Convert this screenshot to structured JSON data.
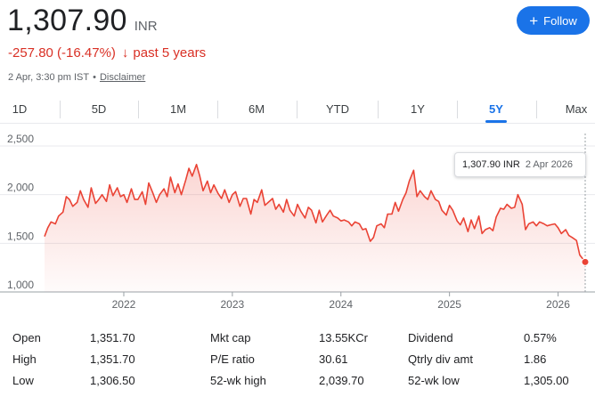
{
  "header": {
    "price": "1,307.90",
    "currency": "INR",
    "change": "-257.80 (-16.47%)",
    "change_arrow": "↓",
    "period": "past 5 years",
    "timestamp": "2 Apr, 3:30 pm IST",
    "separator": "•",
    "disclaimer": "Disclaimer",
    "follow_label": "Follow",
    "follow_icon": "+"
  },
  "colors": {
    "accent": "#1a73e8",
    "negative": "#d93025"
  },
  "tabs": [
    {
      "label": "1D",
      "active": false
    },
    {
      "label": "5D",
      "active": false
    },
    {
      "label": "1M",
      "active": false
    },
    {
      "label": "6M",
      "active": false
    },
    {
      "label": "YTD",
      "active": false
    },
    {
      "label": "1Y",
      "active": false
    },
    {
      "label": "5Y",
      "active": true
    },
    {
      "label": "Max",
      "active": false
    }
  ],
  "tooltip": {
    "value": "1,307.90 INR",
    "date": "2 Apr 2026"
  },
  "chart_data": {
    "type": "area",
    "title": "",
    "xlabel": "",
    "ylabel": "",
    "ylim": [
      1000,
      2500
    ],
    "y_ticks": [
      "2,500",
      "2,000",
      "1,500",
      "1,000"
    ],
    "y_tick_values": [
      2500,
      2000,
      1500,
      1000
    ],
    "xlim": [
      2021.27,
      2026.25
    ],
    "x_ticks": [
      "2022",
      "2023",
      "2024",
      "2025",
      "2026"
    ],
    "x_tick_values": [
      2022,
      2023,
      2024,
      2025,
      2026
    ],
    "grid": true,
    "series": [
      {
        "x": [
          2021.27,
          2021.3,
          2021.33,
          2021.37,
          2021.4,
          2021.44,
          2021.47,
          2021.5,
          2021.53,
          2021.57,
          2021.6,
          2021.63,
          2021.67,
          2021.7,
          2021.74,
          2021.77,
          2021.8,
          2021.84,
          2021.87,
          2021.9,
          2021.94,
          2021.97,
          2022.0,
          2022.03,
          2022.07,
          2022.1,
          2022.13,
          2022.17,
          2022.2,
          2022.23,
          2022.27,
          2022.3,
          2022.33,
          2022.37,
          2022.4,
          2022.43,
          2022.47,
          2022.5,
          2022.53,
          2022.57,
          2022.6,
          2022.63,
          2022.67,
          2022.7,
          2022.73,
          2022.77,
          2022.8,
          2022.83,
          2022.87,
          2022.9,
          2022.93,
          2022.97,
          2023.0,
          2023.03,
          2023.07,
          2023.1,
          2023.13,
          2023.17,
          2023.2,
          2023.23,
          2023.27,
          2023.3,
          2023.33,
          2023.37,
          2023.4,
          2023.43,
          2023.47,
          2023.5,
          2023.53,
          2023.57,
          2023.6,
          2023.63,
          2023.67,
          2023.7,
          2023.73,
          2023.77,
          2023.8,
          2023.83,
          2023.87,
          2023.9,
          2023.93,
          2023.97,
          2024.0,
          2024.03,
          2024.07,
          2024.1,
          2024.13,
          2024.17,
          2024.2,
          2024.23,
          2024.27,
          2024.3,
          2024.33,
          2024.37,
          2024.4,
          2024.43,
          2024.47,
          2024.5,
          2024.53,
          2024.57,
          2024.6,
          2024.63,
          2024.67,
          2024.7,
          2024.73,
          2024.77,
          2024.8,
          2024.83,
          2024.87,
          2024.9,
          2024.93,
          2024.97,
          2025.0,
          2025.03,
          2025.07,
          2025.1,
          2025.13,
          2025.17,
          2025.2,
          2025.23,
          2025.27,
          2025.3,
          2025.33,
          2025.37,
          2025.4,
          2025.43,
          2025.47,
          2025.5,
          2025.53,
          2025.57,
          2025.6,
          2025.63,
          2025.67,
          2025.7,
          2025.73,
          2025.77,
          2025.8,
          2025.83,
          2025.87,
          2025.9,
          2025.93,
          2025.97,
          2026.0,
          2026.03,
          2026.07,
          2026.1,
          2026.13,
          2026.17,
          2026.2,
          2026.25
        ],
        "y": [
          1570,
          1660,
          1720,
          1700,
          1780,
          1820,
          1980,
          1950,
          1880,
          1920,
          2040,
          1950,
          1870,
          2070,
          1910,
          1950,
          2000,
          1930,
          2100,
          1990,
          2070,
          1980,
          2000,
          1920,
          2060,
          1950,
          1950,
          2030,
          1900,
          2120,
          2010,
          1920,
          2000,
          2060,
          1980,
          2180,
          2020,
          2110,
          2000,
          2150,
          2270,
          2190,
          2310,
          2190,
          2040,
          2140,
          2020,
          2100,
          2010,
          1960,
          2050,
          1920,
          2000,
          2030,
          1880,
          1960,
          1960,
          1800,
          1950,
          1920,
          2050,
          1890,
          1920,
          1960,
          1850,
          1900,
          1820,
          1950,
          1840,
          1780,
          1900,
          1830,
          1760,
          1870,
          1840,
          1710,
          1840,
          1720,
          1790,
          1840,
          1780,
          1760,
          1730,
          1740,
          1720,
          1680,
          1720,
          1700,
          1640,
          1650,
          1520,
          1560,
          1680,
          1700,
          1660,
          1800,
          1800,
          1920,
          1830,
          1950,
          2020,
          2140,
          2250,
          1980,
          2040,
          1980,
          1950,
          2040,
          1950,
          1930,
          1840,
          1790,
          1890,
          1840,
          1730,
          1690,
          1760,
          1620,
          1740,
          1650,
          1780,
          1600,
          1640,
          1660,
          1630,
          1770,
          1860,
          1850,
          1900,
          1860,
          1870,
          2000,
          1900,
          1640,
          1700,
          1720,
          1680,
          1720,
          1700,
          1680,
          1690,
          1700,
          1660,
          1600,
          1640,
          1580,
          1560,
          1530,
          1380,
          1307.9
        ]
      }
    ],
    "last_point": {
      "x": 2026.25,
      "y": 1307.9
    }
  },
  "stats": {
    "col1": [
      {
        "label": "Open",
        "value": "1,351.70"
      },
      {
        "label": "High",
        "value": "1,351.70"
      },
      {
        "label": "Low",
        "value": "1,306.50"
      }
    ],
    "col2": [
      {
        "label": "Mkt cap",
        "value": "13.55KCr"
      },
      {
        "label": "P/E ratio",
        "value": "30.61"
      },
      {
        "label": "52-wk high",
        "value": "2,039.70"
      }
    ],
    "col3": [
      {
        "label": "Dividend",
        "value": "0.57%"
      },
      {
        "label": "Qtrly div amt",
        "value": "1.86"
      },
      {
        "label": "52-wk low",
        "value": "1,305.00"
      }
    ]
  }
}
